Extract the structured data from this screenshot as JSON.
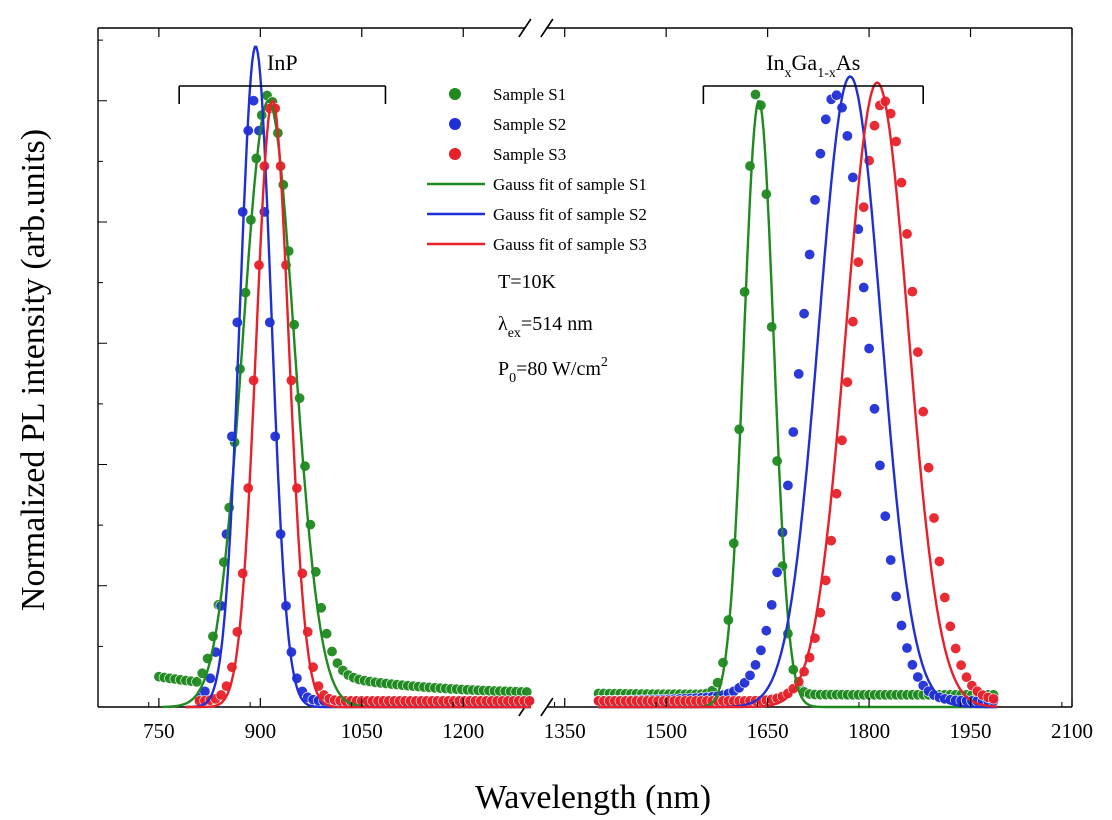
{
  "chart_data": {
    "type": "scatter",
    "xlabel": "Wavelength (nm)",
    "ylabel": "Normalized PL intensity (arb.units)",
    "xlim": [
      660,
      2100
    ],
    "ylim": [
      0,
      1.12
    ],
    "x_break": [
      1300,
      1400
    ],
    "x_ticks": [
      750,
      900,
      1050,
      1200,
      1350,
      1500,
      1650,
      1800,
      1950,
      2100
    ],
    "x_tick_labels": [
      "750",
      "900",
      "1050",
      "1200",
      "1350",
      "1500",
      "1650",
      "1800",
      "1950",
      "2100"
    ],
    "y_tick_labels_shown": false,
    "grid": false,
    "legend_placement": "top-center",
    "colors": {
      "S1": "#1f8a1f",
      "S2": "#1f2fd6",
      "S3": "#e8202a"
    },
    "region_labels": [
      {
        "base": "InP",
        "sub1": "",
        "mid": "",
        "sub2": "",
        "tail": "",
        "range": [
          780,
          1085
        ]
      },
      {
        "base": "In",
        "sub1": "x",
        "mid": "Ga",
        "sub2": "1-x",
        "tail": "As",
        "range": [
          1555,
          1880
        ]
      }
    ],
    "annotations": {
      "temperature": "T=10K",
      "lambda_symbol": "λ",
      "lambda_sub": "ex",
      "lambda_value": "=514 nm",
      "power_base": "P",
      "power_sub": "0",
      "power_value": "=80 W/cm",
      "power_sup": "2"
    },
    "series": [
      {
        "name": "Sample S1",
        "kind": "points",
        "color": "#1f8a1f",
        "peaks": [
          {
            "center": 912,
            "sigma": 38,
            "amp": 0.99,
            "tail": 0.06,
            "tail_decay": 150
          },
          {
            "center": 1635,
            "sigma": 21,
            "amp": 1.0,
            "tail": 0.0,
            "tail_decay": 1
          }
        ],
        "baseline": 0.02,
        "left_floor": 0.05
      },
      {
        "name": "Sample S2",
        "kind": "points",
        "color": "#1f2fd6",
        "peaks": [
          {
            "center": 890,
            "sigma": 25,
            "amp": 0.99,
            "tail": 0.0,
            "tail_decay": 1
          },
          {
            "center": 1750,
            "sigma": 48,
            "amp": 1.0,
            "tail": 0.06,
            "tail_decay": 80,
            "tail_side": "left"
          }
        ],
        "baseline": 0.01,
        "left_floor": 0.0
      },
      {
        "name": "Sample S3",
        "kind": "points",
        "color": "#e8202a",
        "peaks": [
          {
            "center": 918,
            "sigma": 25,
            "amp": 0.99,
            "tail": 0.0,
            "tail_decay": 1
          },
          {
            "center": 1822,
            "sigma": 48,
            "amp": 0.99,
            "tail": 0.0,
            "tail_decay": 1
          }
        ],
        "baseline": 0.01,
        "left_floor": 0.0
      },
      {
        "name": "Gauss fit of  sample S1",
        "kind": "line",
        "color": "#1f8a1f",
        "peaks": [
          {
            "center": 912,
            "sigma": 38,
            "amp": 1.0
          },
          {
            "center": 1637,
            "sigma": 22,
            "amp": 1.0
          }
        ],
        "baseline": 0.0
      },
      {
        "name": "Gauss fit of  sample S2",
        "kind": "line",
        "color": "#1f2fd6",
        "peaks": [
          {
            "center": 893,
            "sigma": 23,
            "amp": 1.09
          },
          {
            "center": 1772,
            "sigma": 46,
            "amp": 1.04
          }
        ],
        "baseline": 0.0
      },
      {
        "name": "Gauss fit of  sample S3",
        "kind": "line",
        "color": "#e8202a",
        "peaks": [
          {
            "center": 918,
            "sigma": 24,
            "amp": 1.0
          },
          {
            "center": 1812,
            "sigma": 46,
            "amp": 1.03
          }
        ],
        "baseline": 0.0
      }
    ]
  }
}
